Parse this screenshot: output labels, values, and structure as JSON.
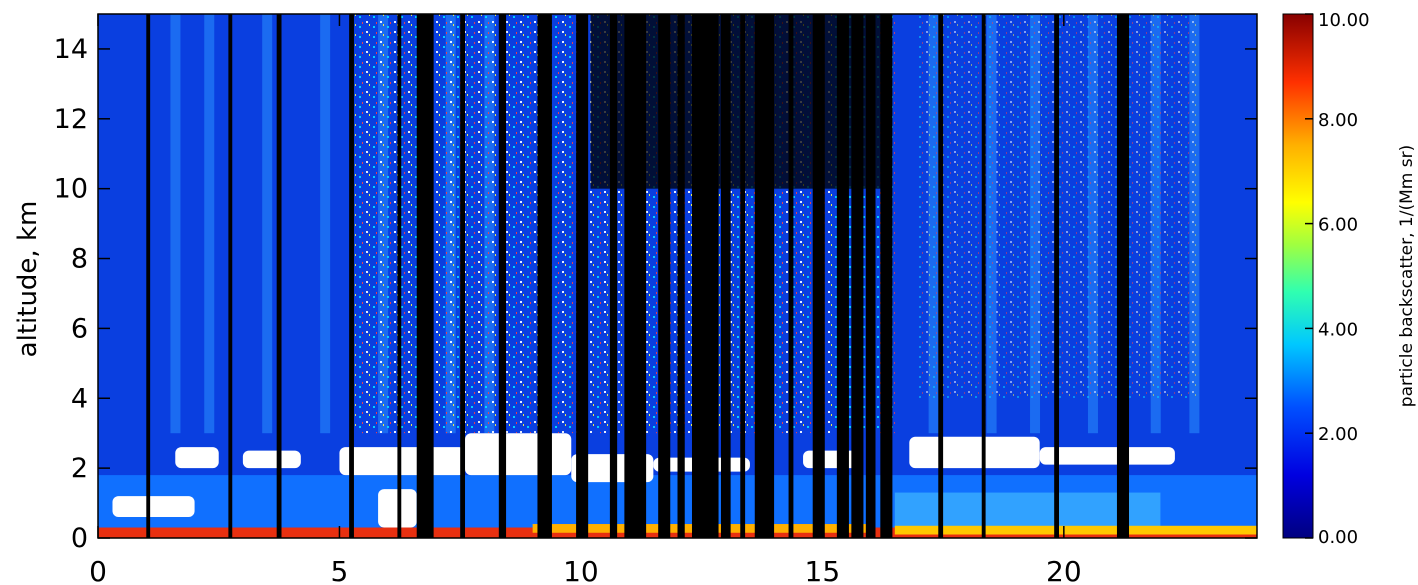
{
  "chart_data": {
    "type": "heatmap",
    "title": "",
    "xlabel": "",
    "ylabel": "altitude, km",
    "xlim": [
      0,
      24
    ],
    "ylim": [
      0,
      15
    ],
    "x_ticks": [
      0,
      5,
      10,
      15,
      20
    ],
    "y_ticks": [
      0,
      2,
      4,
      6,
      8,
      10,
      12,
      14
    ],
    "colorbar": {
      "label": "particle backscatter, 1/(Mm sr)",
      "min": 0,
      "max": 10,
      "ticks": [
        "0.00",
        "2.00",
        "4.00",
        "6.00",
        "8.00",
        "10.00"
      ],
      "colormap": "rainbow (dark blue → cyan → green → yellow → orange → red → dark red)"
    },
    "features": {
      "surface_layer": {
        "altitude_km": [
          0,
          0.3
        ],
        "value_range": [
          8,
          10
        ]
      },
      "cloud_layer": {
        "altitude_km": [
          1.8,
          3.0
        ],
        "value": "above 10 (white)"
      },
      "free_troposphere_background": {
        "altitude_km": [
          3,
          15
        ],
        "value_range": [
          1,
          3
        ]
      },
      "no_data_columns": "black vertical bands, most dense between x = 9 and 16"
    }
  }
}
